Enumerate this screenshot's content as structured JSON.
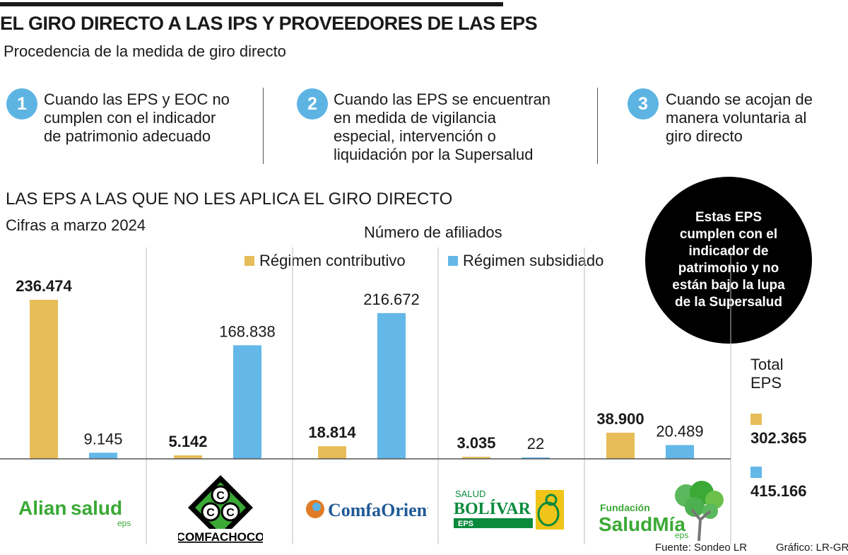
{
  "header": {
    "title": "EL GIRO DIRECTO A LAS IPS Y PROVEEDORES DE LAS EPS",
    "subtitle": "Procedencia de la medida de giro directo"
  },
  "steps": [
    {
      "num": "1",
      "lines": [
        "Cuando las EPS y EOC no",
        "cumplen con el indicador",
        "de patrimonio adecuado"
      ]
    },
    {
      "num": "2",
      "lines": [
        "Cuando las EPS se encuentran",
        "en medida de vigilancia",
        "especial, intervención o",
        "liquidación por la Supersalud"
      ]
    },
    {
      "num": "3",
      "lines": [
        "Cuando se acojan de",
        "manera voluntaria al",
        "giro directo"
      ]
    }
  ],
  "section": {
    "title": "LAS EPS A LAS QUE NO LES APLICA EL GIRO DIRECTO",
    "subtitle": "Cifras a marzo 2024"
  },
  "bubble": {
    "text": "Estas EPS cumplen con el indicador de patrimonio y no están bajo la lupa de la Supersalud"
  },
  "colors": {
    "contributivo": "#e7bd59",
    "subsidiado": "#63b8e8",
    "step": "#5db4e3",
    "logo_green": "#3aa935",
    "comfa_blue": "#1f5a96",
    "bolivar_green": "#0a8a3c",
    "bolivar_yellow": "#f0c419"
  },
  "chart_data": {
    "type": "bar",
    "title": "Número de afiliados",
    "categories": [
      "Aliansalud",
      "Comfachocó",
      "ComfaOriente",
      "Salud Bolívar",
      "Fundación Salud Mía"
    ],
    "series": [
      {
        "name": "Régimen contributivo",
        "values": [
          236474,
          5142,
          18814,
          3035,
          38900
        ],
        "labels": [
          "236.474",
          "5.142",
          "18.814",
          "3.035",
          "38.900"
        ]
      },
      {
        "name": "Régimen subsidiado",
        "values": [
          9145,
          168838,
          216672,
          22,
          20489
        ],
        "labels": [
          "9.145",
          "168.838",
          "216.672",
          "22",
          "20.489"
        ]
      }
    ],
    "ylim": [
      0,
      236474
    ],
    "xlabel": "",
    "ylabel": "",
    "legend": "top",
    "totals": {
      "label": [
        "Total",
        "EPS"
      ],
      "contributivo": "302.365",
      "subsidiado": "415.166"
    }
  },
  "logos": {
    "aliansalud": {
      "main": "Alian",
      "accent": "salud",
      "sub": "eps"
    },
    "comfachoco": {
      "letters": [
        "C",
        "C",
        "C"
      ],
      "name": "COMFACHOCO"
    },
    "comfaoriente": {
      "name": "ComfaOriente"
    },
    "bolivar": {
      "line1": "SALUD",
      "line2": "BOLÍVAR",
      "line3": "EPS"
    },
    "saludmia": {
      "line1": "Fundación",
      "main": "SaludMía",
      "sub": "eps"
    }
  },
  "credits": {
    "source": "Fuente: Sondeo LR",
    "graphic": "Gráfico: LR-GR"
  }
}
